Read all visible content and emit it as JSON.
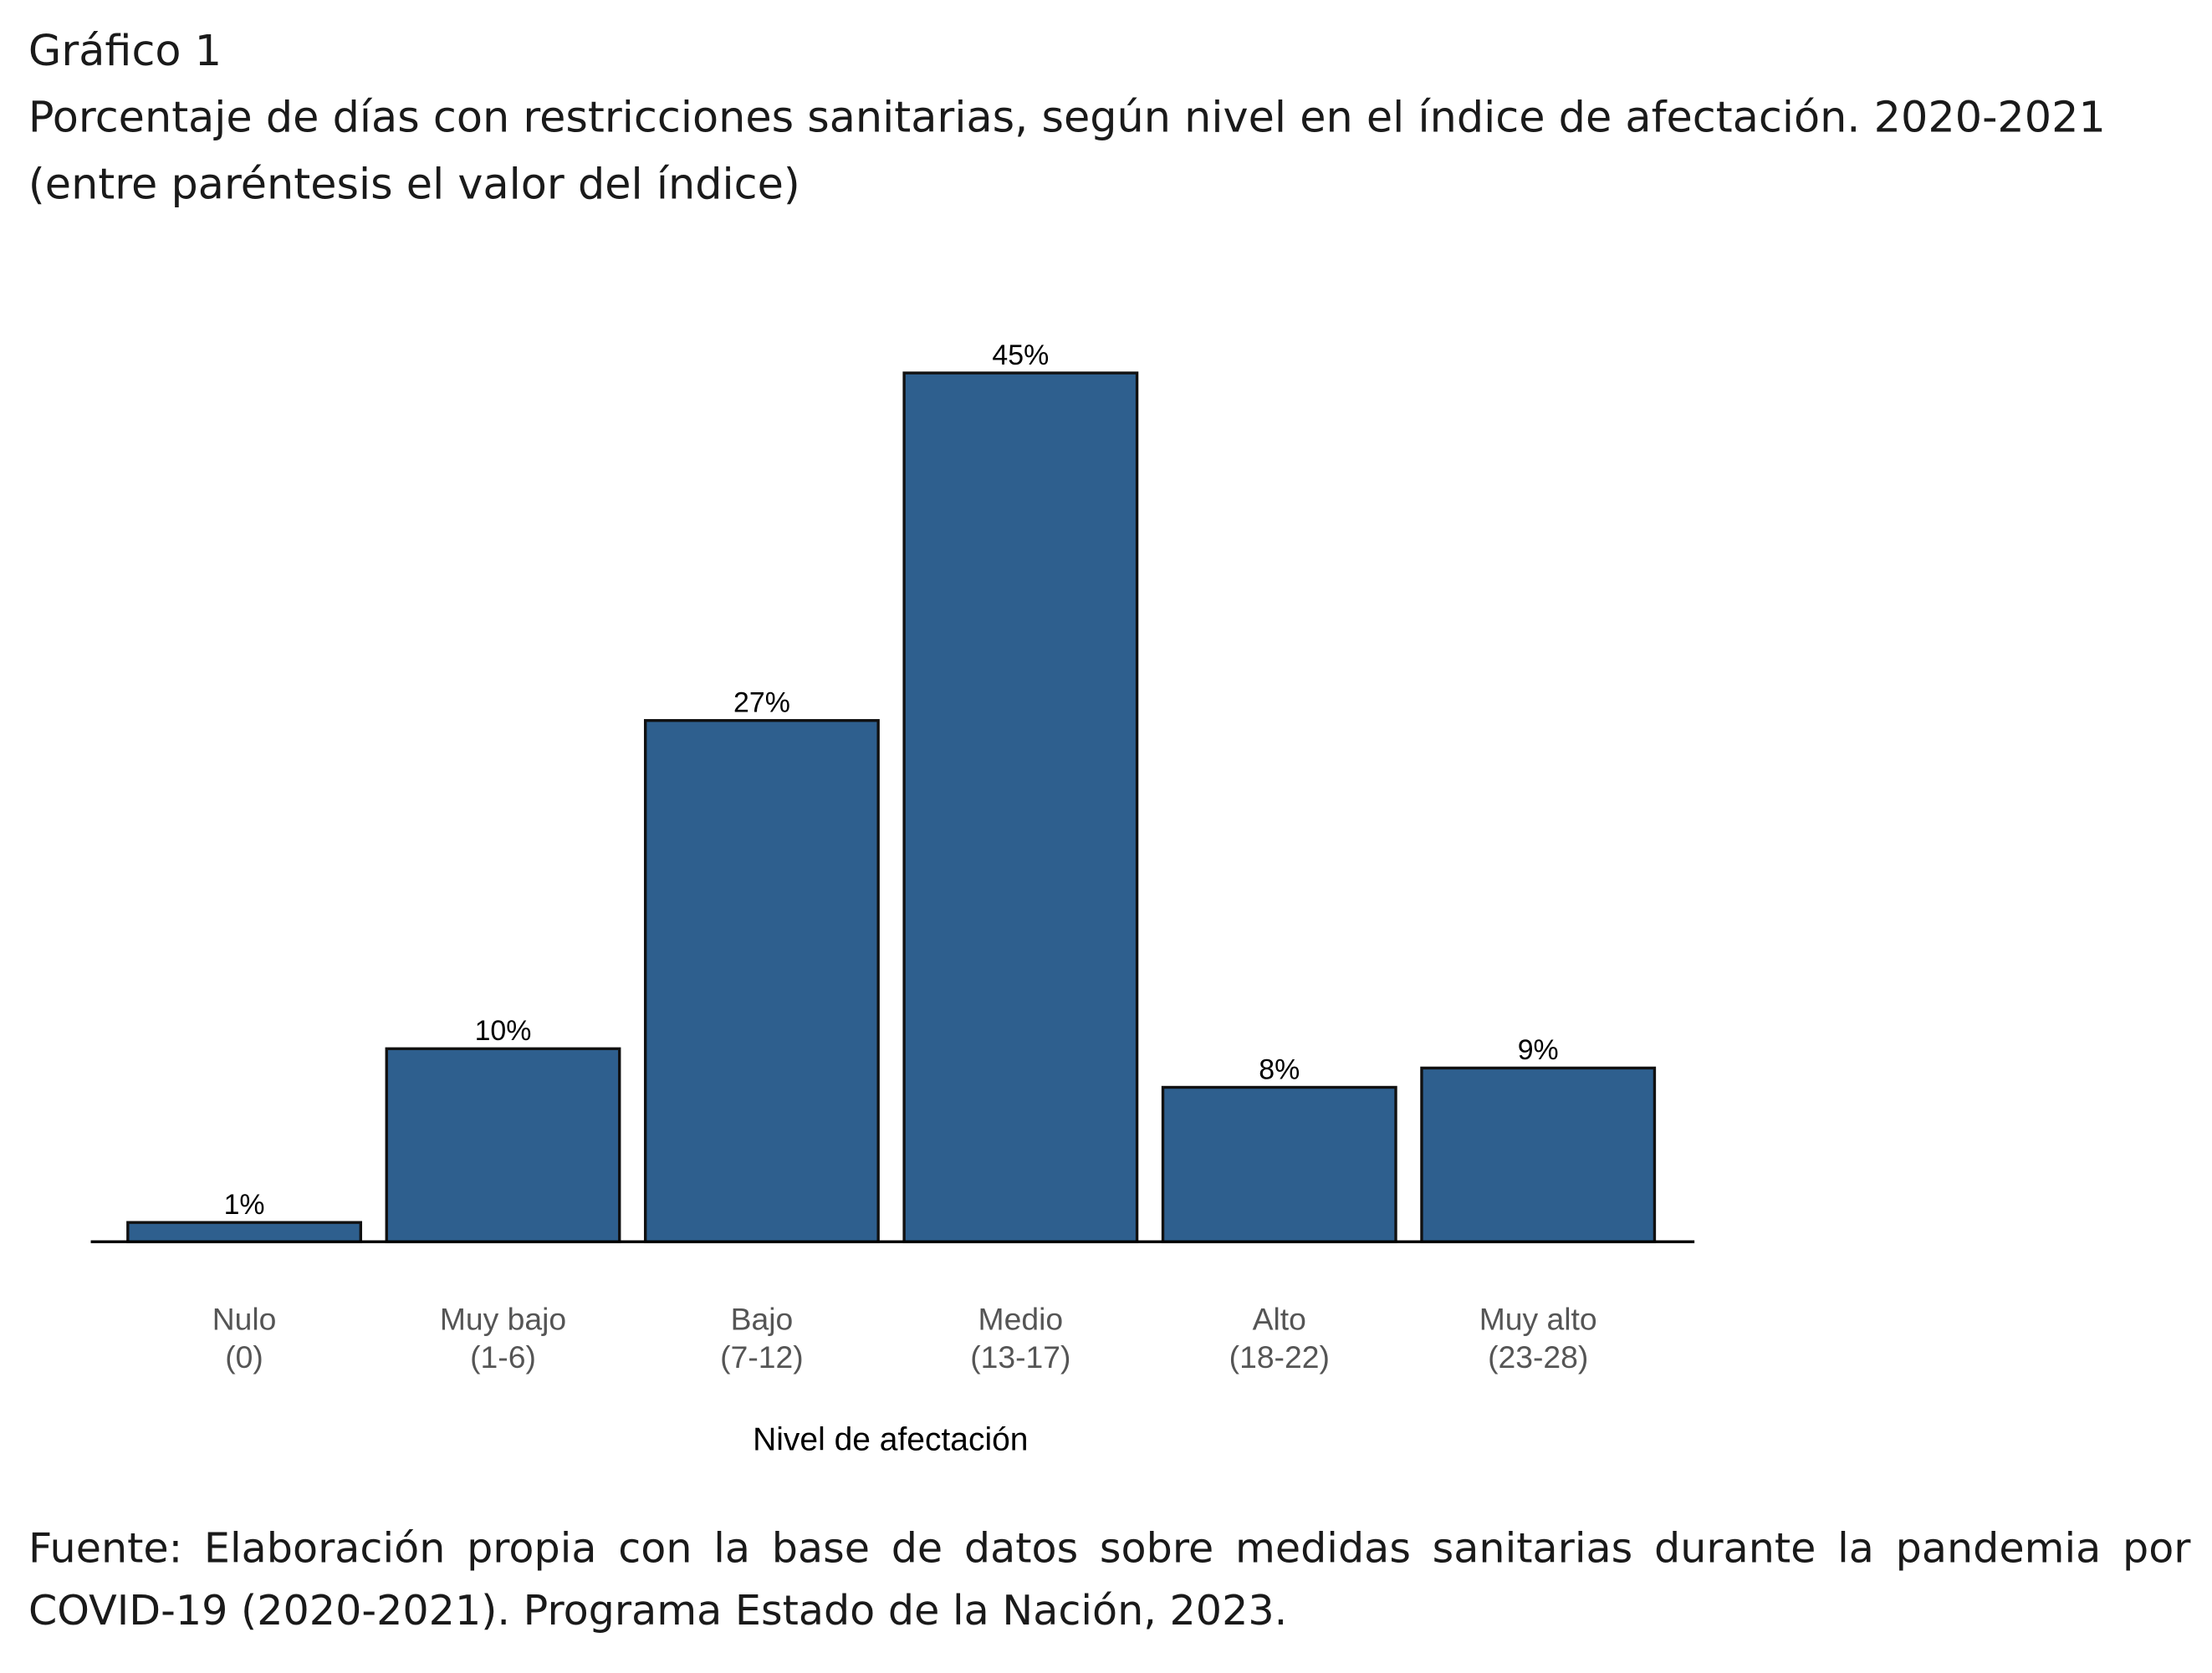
{
  "header": {
    "label": "Gráfico 1",
    "title": "Porcentaje de días con restricciones sanitarias, según nivel en el índice de afectación. 2020-2021",
    "subtitle": "(entre paréntesis el valor del índice)"
  },
  "chart_data": {
    "type": "bar",
    "categories": [
      "Nulo",
      "Muy bajo",
      "Bajo",
      "Medio",
      "Alto",
      "Muy alto"
    ],
    "category_sublabels": [
      "(0)",
      "(1-6)",
      "(7-12)",
      "(13-17)",
      "(18-22)",
      "(23-28)"
    ],
    "values": [
      1,
      10,
      27,
      45,
      8,
      9
    ],
    "value_labels": [
      "1%",
      "10%",
      "27%",
      "45%",
      "8%",
      "9%"
    ],
    "color": "#2e5f8e",
    "ylim": [
      0,
      50
    ],
    "x_label": "Nivel de afectación"
  },
  "footer": {
    "source": "Fuente: Elaboración propia con la base de datos sobre medidas sanitarias durante la pandemia por COVID-19 (2020-2021). Programa Estado de la Nación, 2023."
  }
}
